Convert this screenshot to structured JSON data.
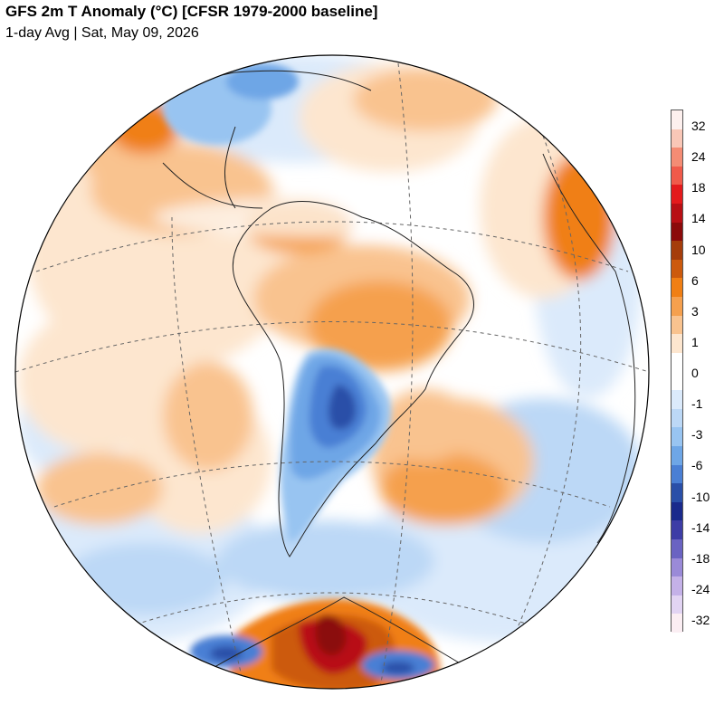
{
  "header": {
    "title": "GFS 2m T Anomaly (°C) [CFSR 1979-2000 baseline]",
    "subtitle": "1-day Avg | Sat, May 09, 2026"
  },
  "colorbar": {
    "labels": [
      "32",
      "24",
      "18",
      "14",
      "10",
      "6",
      "3",
      "1",
      "0",
      "-1",
      "-3",
      "-6",
      "-10",
      "-14",
      "-18",
      "-24",
      "-32"
    ],
    "colors": [
      "#fdf0ee",
      "#f9c7b7",
      "#f48c74",
      "#f05a4a",
      "#e41a1c",
      "#b80f14",
      "#8b0a0a",
      "#a53d0b",
      "#cc5a0d",
      "#f07f14",
      "#f5a04e",
      "#f9c38f",
      "#fde6cf",
      "#ffffff",
      "#ffffff",
      "#dbeafb",
      "#bcd8f6",
      "#98c4f1",
      "#6ea6e6",
      "#4a7fd4",
      "#2a4fa8",
      "#1a2a8c",
      "#3d3da6",
      "#6a63c2",
      "#9a8ad8",
      "#c4b1e8",
      "#e2d4f3",
      "#fbeef3"
    ]
  },
  "map": {
    "ocean_color": "#ffffff",
    "regions": [
      {
        "name": "north-atlantic-warm",
        "color": "#f9c38f"
      },
      {
        "name": "south-america-cold-core",
        "color": "#2a4fa8"
      },
      {
        "name": "antarctic-warm-core",
        "color": "#b80f14"
      }
    ]
  }
}
